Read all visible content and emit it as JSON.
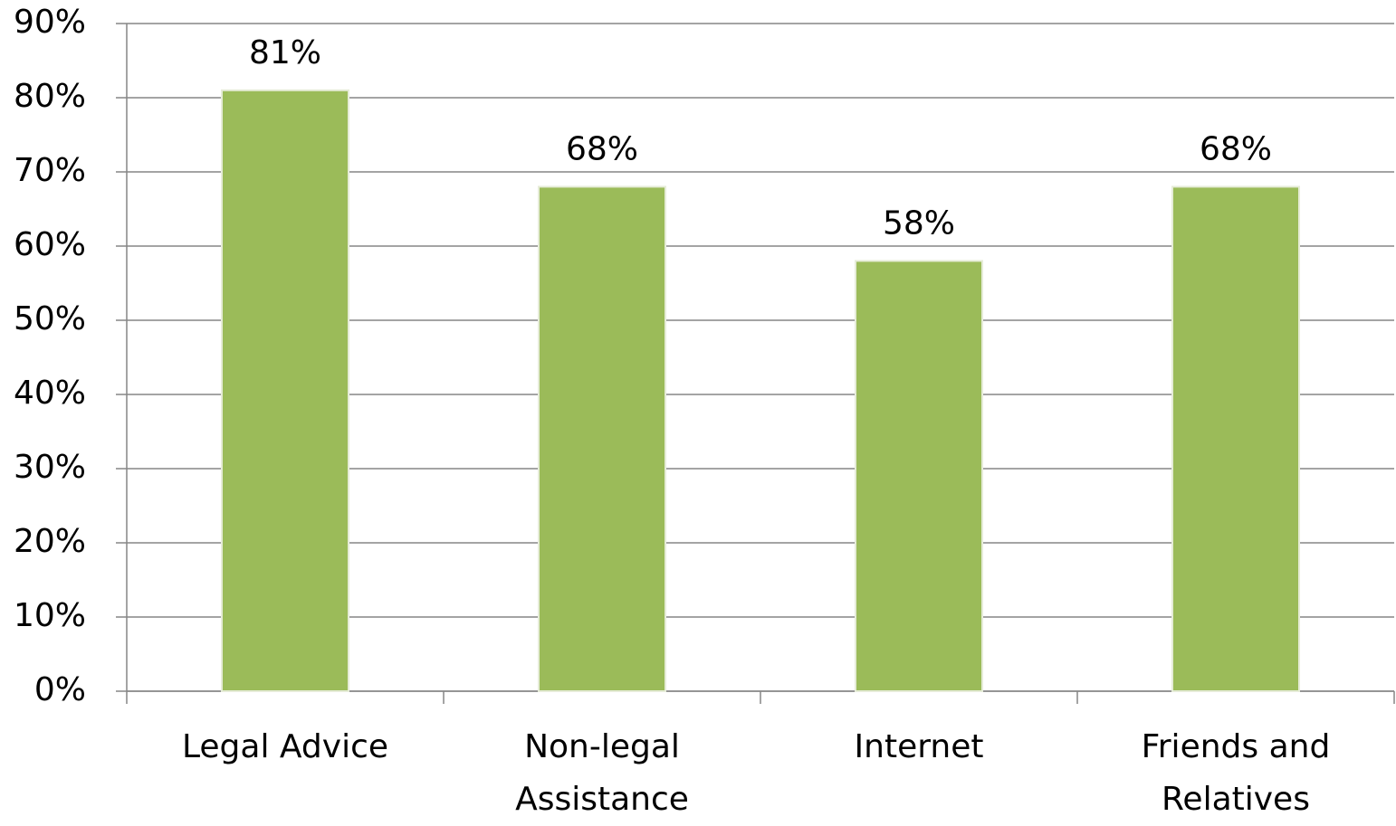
{
  "chart_data": {
    "type": "bar",
    "categories": [
      "Legal Advice",
      "Non-legal Assistance",
      "Internet",
      "Friends and Relatives"
    ],
    "values": [
      81,
      68,
      58,
      68
    ],
    "value_labels": [
      "81%",
      "68%",
      "58%",
      "68%"
    ],
    "color": "#9bbb59",
    "ylim": [
      0,
      90
    ],
    "yticks": [
      {
        "value": 0,
        "label": "0%"
      },
      {
        "value": 10,
        "label": "10%"
      },
      {
        "value": 20,
        "label": "20%"
      },
      {
        "value": 30,
        "label": "30%"
      },
      {
        "value": 40,
        "label": "40%"
      },
      {
        "value": 50,
        "label": "50%"
      },
      {
        "value": 60,
        "label": "60%"
      },
      {
        "value": 70,
        "label": "70%"
      },
      {
        "value": 80,
        "label": "80%"
      },
      {
        "value": 90,
        "label": "90%"
      }
    ],
    "grid": true
  }
}
